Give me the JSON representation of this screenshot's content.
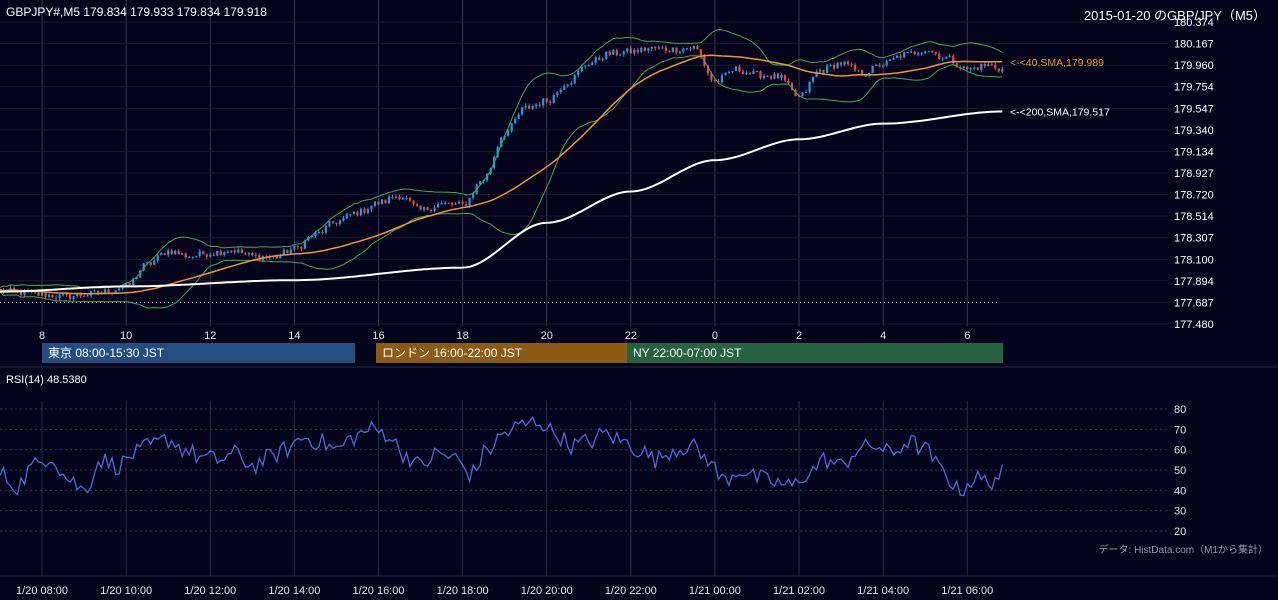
{
  "header": {
    "symbol_info": "GBPJPY#,M5 179.834 179.933 179.834 179.918",
    "title": "2015-01-20 のGBP/JPY（M5）"
  },
  "sessions": [
    {
      "label": "東京 08:00-15:30 JST",
      "color": "#234e7f"
    },
    {
      "label": "ロンドン 16:00-22:00 JST",
      "color": "#8b5a14"
    },
    {
      "label": "NY 22:00-07:00 JST",
      "color": "#266140"
    }
  ],
  "rsi_label": "RSI(14) 48.5380",
  "source_note": "データ: HistData.com（M1から集計）",
  "chart_data": [
    {
      "type": "candlestick",
      "ylim": [
        177.48,
        180.374
      ],
      "y_ticks": [
        "180.374",
        "180.167",
        "179.960",
        "179.754",
        "179.547",
        "179.340",
        "179.134",
        "178.927",
        "178.720",
        "178.514",
        "178.307",
        "178.100",
        "177.894",
        "177.687",
        "177.480"
      ],
      "x_ticks": [
        "8",
        "10",
        "12",
        "14",
        "16",
        "18",
        "20",
        "22",
        "0",
        "2",
        "4",
        "6"
      ],
      "x_tick_hours": [
        8,
        10,
        12,
        14,
        16,
        18,
        20,
        22,
        24,
        26,
        28,
        30
      ],
      "x_range_hours": [
        7.0,
        30.85
      ],
      "close_anchors": [
        [
          7.0,
          177.8
        ],
        [
          7.5,
          177.78
        ],
        [
          8.0,
          177.76
        ],
        [
          8.5,
          177.74
        ],
        [
          9.0,
          177.76
        ],
        [
          9.5,
          177.79
        ],
        [
          10.0,
          177.84
        ],
        [
          10.5,
          178.05
        ],
        [
          11.0,
          178.18
        ],
        [
          11.5,
          178.13
        ],
        [
          12.0,
          178.16
        ],
        [
          12.5,
          178.19
        ],
        [
          13.0,
          178.13
        ],
        [
          13.5,
          178.12
        ],
        [
          14.0,
          178.2
        ],
        [
          14.5,
          178.34
        ],
        [
          15.0,
          178.46
        ],
        [
          15.5,
          178.55
        ],
        [
          16.0,
          178.64
        ],
        [
          16.5,
          178.71
        ],
        [
          17.0,
          178.57
        ],
        [
          17.5,
          178.63
        ],
        [
          18.0,
          178.62
        ],
        [
          18.5,
          178.87
        ],
        [
          19.0,
          179.31
        ],
        [
          19.5,
          179.55
        ],
        [
          20.0,
          179.62
        ],
        [
          20.5,
          179.8
        ],
        [
          21.0,
          179.98
        ],
        [
          21.5,
          180.07
        ],
        [
          22.0,
          180.09
        ],
        [
          22.5,
          180.12
        ],
        [
          23.0,
          180.11
        ],
        [
          23.5,
          180.13
        ],
        [
          24.0,
          179.8
        ],
        [
          24.5,
          179.92
        ],
        [
          25.0,
          179.87
        ],
        [
          25.5,
          179.85
        ],
        [
          26.0,
          179.65
        ],
        [
          26.5,
          179.91
        ],
        [
          27.0,
          179.98
        ],
        [
          27.5,
          179.88
        ],
        [
          28.0,
          179.97
        ],
        [
          28.5,
          180.06
        ],
        [
          29.0,
          180.11
        ],
        [
          29.5,
          180.03
        ],
        [
          30.0,
          179.92
        ],
        [
          30.5,
          179.96
        ],
        [
          30.85,
          179.92
        ]
      ],
      "sma40": {
        "name": "<-<40,SMA,179.989",
        "last": 179.989,
        "color": "#f5962b"
      },
      "sma200": {
        "name": "<-<200,SMA,179.517",
        "last": 179.517,
        "color": "#ffffff"
      },
      "reference_level": 177.687,
      "bollinger_color": "#3bb04a",
      "bull_color": "#1e9ce8",
      "bear_color": "#e84a4a"
    },
    {
      "type": "line",
      "name": "RSI(14)",
      "last": 48.538,
      "ylim": [
        20,
        80
      ],
      "y_ticks": [
        "80",
        "70",
        "60",
        "50",
        "40",
        "30",
        "20"
      ],
      "x_ticks": [
        "1/20 08:00",
        "1/20 10:00",
        "1/20 12:00",
        "1/20 14:00",
        "1/20 16:00",
        "1/20 18:00",
        "1/20 20:00",
        "1/20 22:00",
        "1/21 00:00",
        "1/21 02:00",
        "1/21 04:00",
        "1/21 06:00"
      ],
      "rsi_anchors": [
        [
          7.0,
          48
        ],
        [
          7.4,
          42
        ],
        [
          7.8,
          52
        ],
        [
          8.2,
          57
        ],
        [
          8.6,
          46
        ],
        [
          9.0,
          40
        ],
        [
          9.4,
          55
        ],
        [
          9.8,
          52
        ],
        [
          10.2,
          58
        ],
        [
          10.6,
          62
        ],
        [
          11.0,
          65
        ],
        [
          11.4,
          60
        ],
        [
          11.8,
          56
        ],
        [
          12.2,
          55
        ],
        [
          12.6,
          58
        ],
        [
          13.0,
          52
        ],
        [
          13.4,
          56
        ],
        [
          13.8,
          60
        ],
        [
          14.2,
          66
        ],
        [
          14.6,
          64
        ],
        [
          15.0,
          60
        ],
        [
          15.4,
          66
        ],
        [
          15.8,
          70
        ],
        [
          16.2,
          68
        ],
        [
          16.6,
          58
        ],
        [
          17.0,
          52
        ],
        [
          17.4,
          58
        ],
        [
          17.8,
          56
        ],
        [
          18.2,
          48
        ],
        [
          18.6,
          60
        ],
        [
          19.0,
          68
        ],
        [
          19.4,
          72
        ],
        [
          19.8,
          74
        ],
        [
          20.2,
          68
        ],
        [
          20.6,
          62
        ],
        [
          21.0,
          64
        ],
        [
          21.4,
          68
        ],
        [
          21.8,
          64
        ],
        [
          22.2,
          60
        ],
        [
          22.6,
          55
        ],
        [
          23.0,
          60
        ],
        [
          23.4,
          62
        ],
        [
          23.8,
          56
        ],
        [
          24.2,
          45
        ],
        [
          24.6,
          50
        ],
        [
          25.0,
          46
        ],
        [
          25.4,
          44
        ],
        [
          25.8,
          42
        ],
        [
          26.2,
          48
        ],
        [
          26.6,
          55
        ],
        [
          27.0,
          52
        ],
        [
          27.4,
          60
        ],
        [
          27.8,
          62
        ],
        [
          28.2,
          58
        ],
        [
          28.6,
          64
        ],
        [
          29.0,
          60
        ],
        [
          29.4,
          50
        ],
        [
          29.8,
          40
        ],
        [
          30.2,
          46
        ],
        [
          30.5,
          44
        ],
        [
          30.85,
          48.5
        ]
      ],
      "color": "#5468dc"
    }
  ]
}
